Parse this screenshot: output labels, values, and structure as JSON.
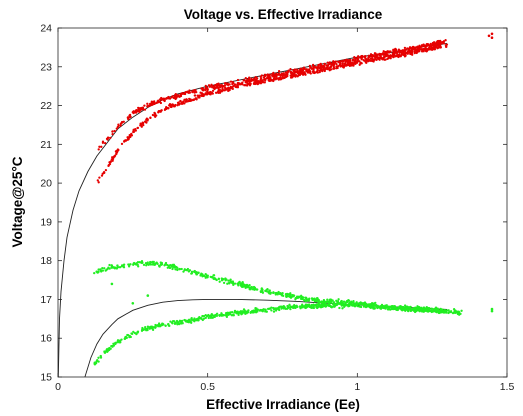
{
  "chart_data": {
    "type": "scatter",
    "title": "Voltage vs. Effective Irradiance",
    "xlabel": "Effective Irradiance (Ee)",
    "ylabel": "Voltage@25°C",
    "xlim": [
      0,
      1.5
    ],
    "ylim": [
      15,
      24
    ],
    "x_ticks": [
      0,
      0.5,
      1,
      1.5
    ],
    "x_tick_labels": [
      "0",
      "0.5",
      "1",
      "1.5"
    ],
    "y_ticks": [
      15,
      16,
      17,
      18,
      19,
      20,
      21,
      22,
      23,
      24
    ],
    "y_tick_labels": [
      "15",
      "16",
      "17",
      "18",
      "19",
      "20",
      "21",
      "22",
      "23",
      "24"
    ],
    "grid": false,
    "colors": {
      "upper": "#e60000",
      "lower": "#22ee22",
      "fit": "#222222"
    },
    "series": [
      {
        "color": "#e60000",
        "marker": "dot",
        "bands": [
          {
            "x": [
              0.13,
              0.16,
              0.2,
              0.25,
              0.3,
              0.35,
              0.4,
              0.5,
              0.6,
              0.7,
              0.8,
              0.9,
              1.0,
              1.1,
              1.2,
              1.3
            ],
            "y": [
              20.85,
              21.1,
              21.45,
              21.8,
              22.0,
              22.15,
              22.25,
              22.45,
              22.6,
              22.75,
              22.9,
              23.05,
              23.2,
              23.35,
              23.5,
              23.65
            ]
          },
          {
            "x": [
              0.13,
              0.16,
              0.2,
              0.25,
              0.3,
              0.35,
              0.4,
              0.5,
              0.6,
              0.7,
              0.8,
              0.9,
              1.0,
              1.1,
              1.2,
              1.3
            ],
            "y": [
              20.0,
              20.35,
              20.85,
              21.3,
              21.65,
              21.9,
              22.05,
              22.3,
              22.5,
              22.65,
              22.8,
              22.95,
              23.1,
              23.25,
              23.4,
              23.55
            ]
          }
        ],
        "outliers": [
          {
            "x": 1.45,
            "y": 23.85
          },
          {
            "x": 1.45,
            "y": 23.75
          },
          {
            "x": 1.44,
            "y": 23.8
          }
        ]
      },
      {
        "color": "#22ee22",
        "marker": "dot",
        "bands": [
          {
            "x": [
              0.12,
              0.16,
              0.2,
              0.25,
              0.3,
              0.35,
              0.4,
              0.5,
              0.6,
              0.7,
              0.8,
              0.9,
              1.0,
              1.1,
              1.2,
              1.3,
              1.35
            ],
            "y": [
              17.7,
              17.8,
              17.85,
              17.9,
              17.95,
              17.9,
              17.8,
              17.6,
              17.4,
              17.2,
              17.05,
              16.95,
              16.9,
              16.8,
              16.75,
              16.7,
              16.65
            ]
          },
          {
            "x": [
              0.12,
              0.15,
              0.2,
              0.25,
              0.3,
              0.35,
              0.4,
              0.5,
              0.6,
              0.7,
              0.8,
              0.9,
              1.0,
              1.1,
              1.2,
              1.3
            ],
            "y": [
              15.3,
              15.6,
              15.9,
              16.1,
              16.25,
              16.35,
              16.4,
              16.55,
              16.65,
              16.75,
              16.8,
              16.85,
              16.85,
              16.8,
              16.75,
              16.7
            ]
          }
        ],
        "outliers": [
          {
            "x": 1.45,
            "y": 16.75
          },
          {
            "x": 1.45,
            "y": 16.7
          },
          {
            "x": 0.18,
            "y": 17.4
          },
          {
            "x": 0.25,
            "y": 16.9
          },
          {
            "x": 0.3,
            "y": 17.1
          }
        ]
      }
    ],
    "fit_curves": [
      {
        "x": [
          0.001,
          0.005,
          0.01,
          0.02,
          0.03,
          0.05,
          0.07,
          0.1,
          0.13,
          0.17,
          0.2,
          0.25,
          0.3,
          0.35,
          0.4,
          0.5,
          0.6,
          0.7,
          0.8,
          0.9,
          1.0,
          1.1,
          1.2,
          1.3
        ],
        "y": [
          15.0,
          16.5,
          17.2,
          18.0,
          18.6,
          19.3,
          19.8,
          20.3,
          20.7,
          21.1,
          21.4,
          21.7,
          21.95,
          22.15,
          22.3,
          22.5,
          22.65,
          22.8,
          22.95,
          23.1,
          23.25,
          23.35,
          23.5,
          23.6
        ]
      },
      {
        "x": [
          0.09,
          0.11,
          0.13,
          0.15,
          0.18,
          0.2,
          0.25,
          0.3,
          0.35,
          0.4,
          0.45,
          0.5,
          0.6,
          0.7,
          0.8,
          0.9,
          1.0,
          1.1,
          1.2,
          1.3
        ],
        "y": [
          15.0,
          15.5,
          15.85,
          16.1,
          16.35,
          16.5,
          16.72,
          16.85,
          16.93,
          16.97,
          16.99,
          17.0,
          17.0,
          16.98,
          16.95,
          16.9,
          16.86,
          16.82,
          16.78,
          16.74
        ]
      }
    ]
  }
}
